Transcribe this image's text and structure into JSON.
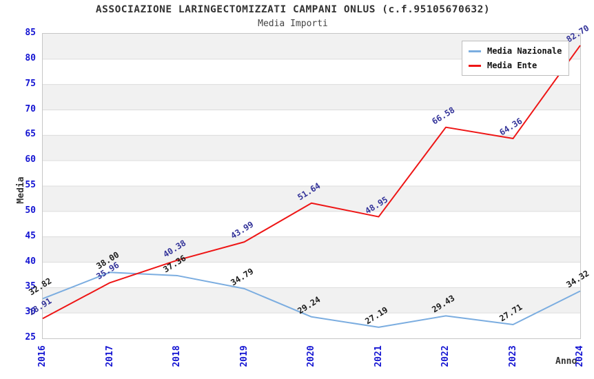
{
  "chart_data": {
    "type": "line",
    "title": "ASSOCIAZIONE LARINGECTOMIZZATI CAMPANI ONLUS (c.f.95105670632)",
    "subtitle": "Media Importi",
    "xlabel": "Anno",
    "ylabel": "Media",
    "categories": [
      "2016",
      "2017",
      "2018",
      "2019",
      "2020",
      "2021",
      "2022",
      "2023",
      "2024"
    ],
    "ylim": [
      25,
      85
    ],
    "ytick_step": 5,
    "ytick_labels": [
      "25",
      "30",
      "35",
      "40",
      "45",
      "50",
      "55",
      "60",
      "65",
      "70",
      "75",
      "80",
      "85"
    ],
    "grid": "horizontal-bands-alternating",
    "legend_position": "top-right-inside",
    "series": [
      {
        "name": "Media Nazionale",
        "color": "#7bade0",
        "label_color": "#1c1c1c",
        "values": [
          32.82,
          38.0,
          37.36,
          34.79,
          29.24,
          27.19,
          29.43,
          27.71,
          34.32
        ]
      },
      {
        "name": "Media Ente",
        "color": "#ee1515",
        "label_color": "#333399",
        "values": [
          28.91,
          35.96,
          40.38,
          43.99,
          51.64,
          48.95,
          66.58,
          64.36,
          82.7
        ]
      }
    ],
    "colors": {
      "tick_label": "#1414d2",
      "band_gray": "#f1f1f1",
      "band_white": "#ffffff",
      "gridline": "#dcdcdc",
      "plot_border": "#c6c6c6",
      "title_text": "#333333"
    }
  }
}
